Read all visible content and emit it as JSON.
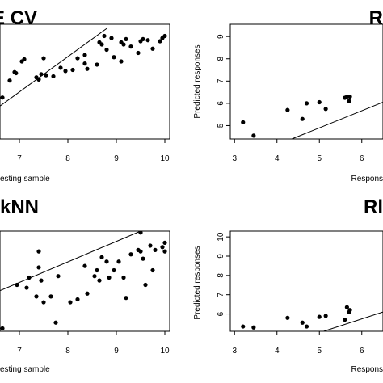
{
  "chart_data": [
    {
      "type": "scatter",
      "title": "E CV",
      "xlabel": "esting sample",
      "ylabel": "",
      "xlim": [
        6.6,
        10.1
      ],
      "ylim": [
        4.35,
        9.75
      ],
      "xticks": [
        "7",
        "8",
        "9",
        "10"
      ],
      "yticks": [],
      "line": [
        [
          6.6,
          5.9
        ],
        [
          8.8,
          9.55
        ]
      ],
      "points": [
        [
          6.65,
          6.3
        ],
        [
          6.8,
          7.1
        ],
        [
          6.9,
          7.5
        ],
        [
          6.93,
          7.45
        ],
        [
          7.05,
          8.0
        ],
        [
          7.1,
          8.1
        ],
        [
          7.35,
          7.25
        ],
        [
          7.4,
          7.15
        ],
        [
          7.45,
          7.4
        ],
        [
          7.5,
          8.15
        ],
        [
          7.55,
          7.35
        ],
        [
          7.7,
          7.3
        ],
        [
          7.85,
          7.7
        ],
        [
          7.95,
          7.55
        ],
        [
          8.1,
          7.6
        ],
        [
          8.2,
          8.15
        ],
        [
          8.35,
          8.3
        ],
        [
          8.35,
          7.9
        ],
        [
          8.4,
          7.65
        ],
        [
          8.6,
          7.85
        ],
        [
          8.65,
          8.9
        ],
        [
          8.7,
          8.8
        ],
        [
          8.75,
          9.2
        ],
        [
          8.8,
          8.55
        ],
        [
          8.9,
          9.1
        ],
        [
          8.95,
          8.2
        ],
        [
          9.1,
          8.0
        ],
        [
          9.1,
          8.9
        ],
        [
          9.15,
          8.8
        ],
        [
          9.2,
          9.05
        ],
        [
          9.3,
          8.7
        ],
        [
          9.45,
          8.4
        ],
        [
          9.5,
          8.95
        ],
        [
          9.55,
          9.05
        ],
        [
          9.65,
          9.0
        ],
        [
          9.75,
          8.6
        ],
        [
          9.9,
          8.95
        ],
        [
          9.95,
          9.1
        ],
        [
          10.0,
          9.2
        ]
      ]
    },
    {
      "type": "scatter",
      "title": "R",
      "xlabel": "Respons",
      "ylabel": "Predicted responses",
      "xlim": [
        2.9,
        6.5
      ],
      "ylim": [
        4.4,
        9.55
      ],
      "xticks": [
        "3",
        "4",
        "5",
        "6"
      ],
      "yticks": [
        "5",
        "6",
        "7",
        "8",
        "9"
      ],
      "line": [
        [
          4.35,
          4.4
        ],
        [
          6.5,
          6.05
        ]
      ],
      "points": [
        [
          3.2,
          5.15
        ],
        [
          3.45,
          4.55
        ],
        [
          4.25,
          5.7
        ],
        [
          4.6,
          5.3
        ],
        [
          4.7,
          6.0
        ],
        [
          5.0,
          6.05
        ],
        [
          5.15,
          5.75
        ],
        [
          5.6,
          6.25
        ],
        [
          5.65,
          6.3
        ],
        [
          5.7,
          6.1
        ],
        [
          5.72,
          6.3
        ]
      ]
    },
    {
      "type": "scatter",
      "title": "kNN",
      "xlabel": "esting sample",
      "ylabel": "",
      "xlim": [
        6.6,
        10.1
      ],
      "ylim": [
        6.2,
        9.65
      ],
      "xticks": [
        "7",
        "8",
        "9",
        "10"
      ],
      "yticks": [],
      "line": [
        [
          6.6,
          7.6
        ],
        [
          9.5,
          9.65
        ]
      ],
      "points": [
        [
          6.65,
          6.3
        ],
        [
          6.95,
          7.8
        ],
        [
          7.15,
          7.7
        ],
        [
          7.2,
          8.05
        ],
        [
          7.35,
          7.4
        ],
        [
          7.4,
          8.4
        ],
        [
          7.4,
          8.95
        ],
        [
          7.45,
          7.95
        ],
        [
          7.5,
          7.2
        ],
        [
          7.65,
          7.4
        ],
        [
          7.75,
          6.5
        ],
        [
          7.8,
          8.1
        ],
        [
          8.05,
          7.2
        ],
        [
          8.2,
          7.3
        ],
        [
          8.35,
          8.45
        ],
        [
          8.4,
          7.5
        ],
        [
          8.55,
          8.1
        ],
        [
          8.6,
          8.3
        ],
        [
          8.65,
          7.95
        ],
        [
          8.7,
          8.75
        ],
        [
          8.8,
          8.6
        ],
        [
          8.85,
          8.05
        ],
        [
          8.95,
          8.3
        ],
        [
          9.05,
          8.6
        ],
        [
          9.15,
          8.05
        ],
        [
          9.2,
          7.35
        ],
        [
          9.3,
          8.85
        ],
        [
          9.45,
          9.0
        ],
        [
          9.5,
          8.95
        ],
        [
          9.5,
          9.6
        ],
        [
          9.55,
          8.7
        ],
        [
          9.6,
          7.8
        ],
        [
          9.7,
          9.15
        ],
        [
          9.75,
          8.3
        ],
        [
          9.8,
          9.0
        ],
        [
          9.95,
          9.1
        ],
        [
          10.0,
          8.95
        ],
        [
          10.0,
          9.25
        ]
      ]
    },
    {
      "type": "scatter",
      "title": "Rl",
      "xlabel": "Respons",
      "ylabel": "Predicted responses",
      "xlim": [
        2.9,
        6.5
      ],
      "ylim": [
        5.1,
        10.3
      ],
      "xticks": [
        "3",
        "4",
        "5",
        "6"
      ],
      "yticks": [
        "6",
        "7",
        "8",
        "9",
        "10"
      ],
      "line": [
        [
          5.1,
          5.1
        ],
        [
          6.5,
          6.1
        ]
      ],
      "points": [
        [
          3.2,
          5.35
        ],
        [
          3.45,
          5.3
        ],
        [
          4.25,
          5.8
        ],
        [
          4.6,
          5.55
        ],
        [
          4.7,
          5.35
        ],
        [
          5.0,
          5.85
        ],
        [
          5.15,
          5.9
        ],
        [
          5.6,
          5.7
        ],
        [
          5.65,
          6.35
        ],
        [
          5.7,
          6.1
        ],
        [
          5.72,
          6.2
        ]
      ]
    }
  ]
}
